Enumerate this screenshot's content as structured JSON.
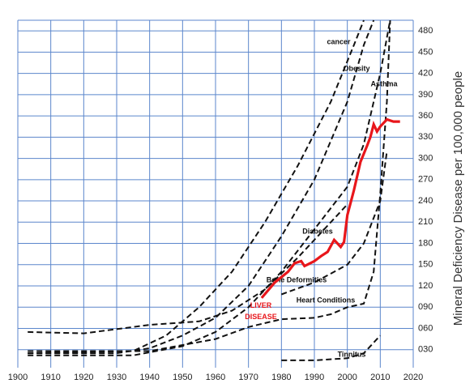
{
  "chart_data": {
    "type": "line",
    "y_label": "Mineral Deficiency Disease per 100,000 people",
    "xlim": [
      1900,
      2020
    ],
    "xticks": [
      1900,
      1910,
      1920,
      1930,
      1940,
      1950,
      1960,
      1970,
      1980,
      1990,
      2000,
      2010,
      2020
    ],
    "ylim": [
      0,
      495
    ],
    "yticks": [
      {
        "value": 30,
        "label": "030"
      },
      {
        "value": 60,
        "label": "060"
      },
      {
        "value": 90,
        "label": "090"
      },
      120,
      150,
      180,
      210,
      240,
      270,
      300,
      330,
      360,
      390,
      420,
      450,
      480
    ],
    "grid": true,
    "series": [
      {
        "name": "cancer",
        "color": "#111111",
        "dashed": true,
        "x": [
          1903,
          1935,
          1945,
          1955,
          1965,
          1975,
          1985,
          1995,
          2002,
          2005
        ],
        "values": [
          25,
          28,
          50,
          90,
          140,
          210,
          290,
          380,
          460,
          495
        ]
      },
      {
        "name": "Obesity",
        "color": "#111111",
        "dashed": true,
        "x": [
          1903,
          1930,
          1940,
          1950,
          1960,
          1970,
          1980,
          1990,
          2000,
          2005,
          2008
        ],
        "values": [
          25,
          25,
          32,
          50,
          75,
          120,
          190,
          270,
          380,
          460,
          495
        ]
      },
      {
        "name": "Asthma",
        "color": "#111111",
        "dashed": true,
        "x": [
          1903,
          1935,
          1950,
          1960,
          1970,
          1980,
          1990,
          2000,
          2005,
          2010,
          2013
        ],
        "values": [
          22,
          22,
          35,
          55,
          90,
          140,
          200,
          260,
          320,
          420,
          495
        ]
      },
      {
        "name": "Diabetes",
        "color": "#111111",
        "dashed": true,
        "x": [
          1903,
          1920,
          1940,
          1955,
          1965,
          1975,
          1985,
          1995,
          2000
        ],
        "values": [
          55,
          53,
          65,
          70,
          85,
          115,
          160,
          210,
          235
        ]
      },
      {
        "name": "Bone Deformities",
        "color": "#111111",
        "dashed": true,
        "x": [
          1980,
          1990,
          2000,
          2005,
          2010,
          2012
        ],
        "values": [
          108,
          125,
          150,
          180,
          240,
          310
        ]
      },
      {
        "name": "Heart Conditions",
        "color": "#111111",
        "dashed": true,
        "x": [
          1903,
          1940,
          1960,
          1970,
          1980,
          1990,
          1995,
          2000,
          2005,
          2008,
          2010,
          2012,
          2013
        ],
        "values": [
          28,
          28,
          45,
          62,
          73,
          75,
          80,
          90,
          95,
          140,
          250,
          380,
          495
        ]
      },
      {
        "name": "Tinnitus",
        "color": "#111111",
        "dashed": true,
        "x": [
          1980,
          1990,
          2000,
          2005,
          2010
        ],
        "values": [
          15,
          15,
          18,
          25,
          50
        ]
      },
      {
        "name": "LIVER DISEASE",
        "color": "#e8161b",
        "dashed": false,
        "x": [
          1974,
          1978,
          1982,
          1984,
          1986,
          1987,
          1990,
          1992,
          1994,
          1996,
          1998,
          1999,
          2000,
          2002,
          2004,
          2006,
          2007,
          2008,
          2009,
          2010,
          2012,
          2014,
          2016
        ],
        "values": [
          103,
          125,
          140,
          152,
          155,
          148,
          155,
          162,
          168,
          185,
          175,
          182,
          220,
          255,
          295,
          318,
          330,
          348,
          338,
          345,
          355,
          352,
          352
        ]
      }
    ]
  }
}
